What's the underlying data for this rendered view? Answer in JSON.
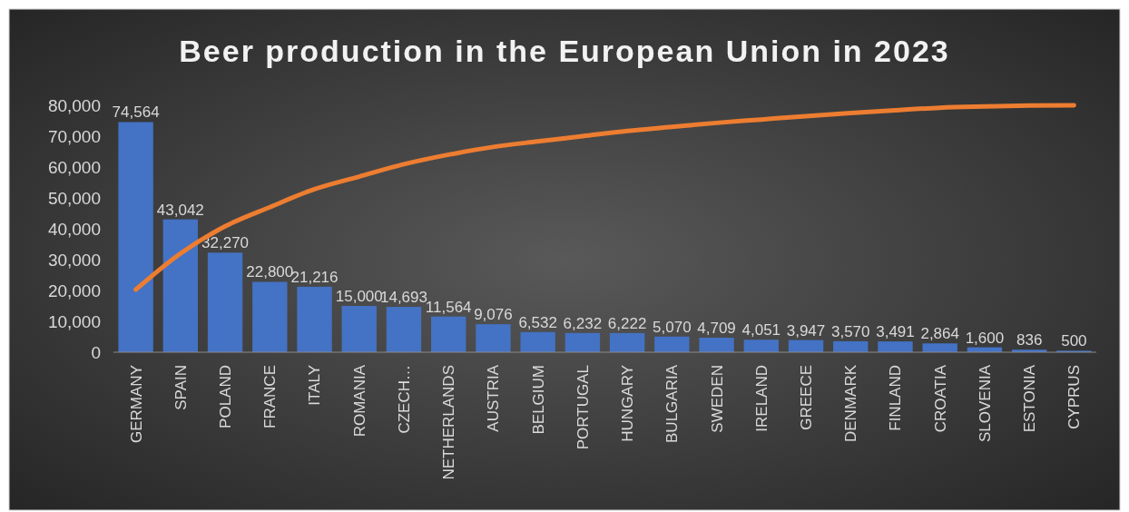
{
  "chart_data": {
    "type": "bar",
    "title": "Beer production in the European Union in 2023",
    "categories": [
      "GERMANY",
      "SPAIN",
      "POLAND",
      "FRANCE",
      "ITALY",
      "ROMANIA",
      "CZECH…",
      "NETHERLANDS",
      "AUSTRIA",
      "BELGIUM",
      "PORTUGAL",
      "HUNGARY",
      "BULGARIA",
      "SWEDEN",
      "IRELAND",
      "GREECE",
      "DENMARK",
      "FINLAND",
      "CROATIA",
      "SLOVENIA",
      "ESTONIA",
      "CYPRUS"
    ],
    "series": [
      {
        "color": "#4472c4",
        "values": [
          74564,
          43042,
          32270,
          22800,
          21216,
          15000,
          14693,
          11564,
          9076,
          6532,
          6232,
          6222,
          5070,
          4709,
          4051,
          3947,
          3570,
          3491,
          2864,
          1600,
          836,
          500
        ],
        "value_labels": [
          "74,564",
          "43,042",
          "32,270",
          "22,800",
          "21,216",
          "15,000",
          "14,693",
          "11,564",
          "9,076",
          "6,532",
          "6,232",
          "6,222",
          "5,070",
          "4,709",
          "4,051",
          "3,947",
          "3,570",
          "3,491",
          "2,864",
          "1,600",
          "836",
          "500"
        ]
      },
      {
        "type": "line",
        "color": "#ed7d31",
        "values": [
          20300,
          32000,
          40800,
          47000,
          52800,
          56900,
          60900,
          64000,
          66500,
          68300,
          70000,
          71700,
          73000,
          74300,
          75400,
          76500,
          77500,
          78400,
          79200,
          79600,
          79900,
          80000
        ]
      }
    ],
    "ylim": [
      0,
      80000
    ],
    "yticks": [
      {
        "value": 0,
        "label": "0"
      },
      {
        "value": 10000,
        "label": "10,000"
      },
      {
        "value": 20000,
        "label": "20,000"
      },
      {
        "value": 30000,
        "label": "30,000"
      },
      {
        "value": 40000,
        "label": "40,000"
      },
      {
        "value": 50000,
        "label": "50,000"
      },
      {
        "value": 60000,
        "label": "60,000"
      },
      {
        "value": 70000,
        "label": "70,000"
      },
      {
        "value": 80000,
        "label": "80,000"
      }
    ],
    "marker": "none",
    "line_style": "solid"
  }
}
